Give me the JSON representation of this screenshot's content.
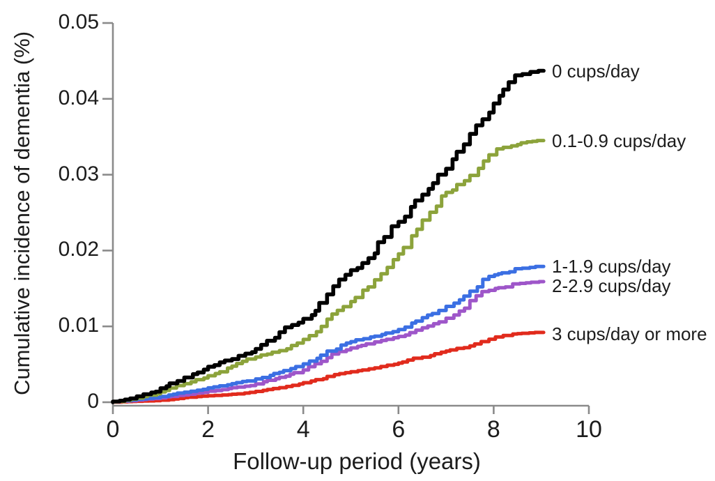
{
  "chart_data": {
    "type": "line",
    "subtype": "cumulative-incidence-step-curves",
    "title": "",
    "xlabel": "Follow-up period (years)",
    "ylabel": "Cumulative incidence of dementia (%)",
    "xlim": [
      0,
      10
    ],
    "ylim": [
      0,
      0.05
    ],
    "x_ticks": [
      0,
      2,
      4,
      6,
      8,
      10
    ],
    "x_tick_labels": [
      "0",
      "2",
      "4",
      "6",
      "8",
      "10"
    ],
    "y_ticks": [
      0,
      0.01,
      0.02,
      0.03,
      0.04,
      0.05
    ],
    "y_tick_labels": [
      "0",
      "0.01",
      "0.02",
      "0.03",
      "0.04",
      "0.05"
    ],
    "grid": false,
    "legend_position": "right-of-curve-annotations",
    "axis_color": "#8a8a8a",
    "text_color": "#1c1c1c",
    "background_color": "#ffffff",
    "series": [
      {
        "name": "3 cups/day or more",
        "color": "#e12b1d",
        "label_dy": 2,
        "points": [
          [
            0,
            0
          ],
          [
            0.5,
            0.0001
          ],
          [
            1,
            0.0002
          ],
          [
            1.5,
            0.0005
          ],
          [
            2,
            0.0008
          ],
          [
            2.5,
            0.001
          ],
          [
            3,
            0.0013
          ],
          [
            3.5,
            0.0018
          ],
          [
            4,
            0.0024
          ],
          [
            4.5,
            0.0031
          ],
          [
            5,
            0.0039
          ],
          [
            5.5,
            0.0044
          ],
          [
            6,
            0.005
          ],
          [
            6.5,
            0.0058
          ],
          [
            7,
            0.0066
          ],
          [
            7.5,
            0.0072
          ],
          [
            7.9,
            0.008
          ],
          [
            8.2,
            0.0086
          ],
          [
            8.5,
            0.009
          ],
          [
            9.05,
            0.0092
          ]
        ]
      },
      {
        "name": "2-2.9 cups/day",
        "color": "#9e56c9",
        "label_dy": 6,
        "points": [
          [
            0,
            0
          ],
          [
            0.5,
            0.0002
          ],
          [
            1,
            0.0005
          ],
          [
            1.5,
            0.0009
          ],
          [
            2,
            0.0013
          ],
          [
            2.5,
            0.0018
          ],
          [
            3,
            0.0022
          ],
          [
            3.5,
            0.0031
          ],
          [
            4,
            0.0039
          ],
          [
            4.5,
            0.0054
          ],
          [
            5,
            0.0069
          ],
          [
            5.5,
            0.0077
          ],
          [
            6,
            0.0085
          ],
          [
            6.5,
            0.0095
          ],
          [
            7,
            0.0106
          ],
          [
            7.5,
            0.0124
          ],
          [
            7.9,
            0.0146
          ],
          [
            8.1,
            0.015
          ],
          [
            8.4,
            0.0152
          ],
          [
            8.55,
            0.0156
          ],
          [
            9.05,
            0.0159
          ]
        ]
      },
      {
        "name": "1-1.9 cups/day",
        "color": "#3b6fe3",
        "label_dy": 0,
        "points": [
          [
            0,
            0
          ],
          [
            0.5,
            0.0003
          ],
          [
            1,
            0.0006
          ],
          [
            1.5,
            0.0012
          ],
          [
            2,
            0.0017
          ],
          [
            2.5,
            0.0023
          ],
          [
            3,
            0.0028
          ],
          [
            3.5,
            0.0038
          ],
          [
            4,
            0.0047
          ],
          [
            4.5,
            0.0062
          ],
          [
            5,
            0.0078
          ],
          [
            5.5,
            0.0086
          ],
          [
            6,
            0.0093
          ],
          [
            6.5,
            0.0107
          ],
          [
            7,
            0.0121
          ],
          [
            7.5,
            0.014
          ],
          [
            7.9,
            0.0162
          ],
          [
            8.1,
            0.0168
          ],
          [
            8.45,
            0.0172
          ],
          [
            8.6,
            0.0176
          ],
          [
            9.05,
            0.0179
          ]
        ]
      },
      {
        "name": "0.1-0.9 cups/day",
        "color": "#8ca33b",
        "label_dy": 0,
        "points": [
          [
            0,
            0
          ],
          [
            0.25,
            0.0001
          ],
          [
            0.5,
            0.0004
          ],
          [
            1,
            0.0011
          ],
          [
            1.5,
            0.0022
          ],
          [
            2,
            0.0032
          ],
          [
            2.5,
            0.0045
          ],
          [
            3,
            0.0057
          ],
          [
            3.5,
            0.0066
          ],
          [
            4,
            0.0078
          ],
          [
            4.5,
            0.01
          ],
          [
            5,
            0.0126
          ],
          [
            5.5,
            0.0152
          ],
          [
            6,
            0.0188
          ],
          [
            6.5,
            0.0228
          ],
          [
            7,
            0.0272
          ],
          [
            7.5,
            0.0292
          ],
          [
            7.9,
            0.0318
          ],
          [
            8.2,
            0.0334
          ],
          [
            8.5,
            0.0338
          ],
          [
            8.7,
            0.0342
          ],
          [
            9.05,
            0.0345
          ]
        ]
      },
      {
        "name": "0 cups/day",
        "color": "#000000",
        "label_dy": 0,
        "points": [
          [
            0,
            0
          ],
          [
            0.25,
            0.0002
          ],
          [
            0.5,
            0.0005
          ],
          [
            1,
            0.0014
          ],
          [
            1.5,
            0.0028
          ],
          [
            2,
            0.0043
          ],
          [
            2.5,
            0.0055
          ],
          [
            3,
            0.0066
          ],
          [
            3.5,
            0.0085
          ],
          [
            4,
            0.0105
          ],
          [
            4.5,
            0.0131
          ],
          [
            5,
            0.0168
          ],
          [
            5.5,
            0.019
          ],
          [
            6,
            0.0232
          ],
          [
            6.5,
            0.0266
          ],
          [
            7,
            0.03
          ],
          [
            7.5,
            0.034
          ],
          [
            8,
            0.0382
          ],
          [
            8.2,
            0.0404
          ],
          [
            8.45,
            0.0422
          ],
          [
            8.6,
            0.0431
          ],
          [
            9.05,
            0.0437
          ]
        ]
      }
    ]
  }
}
